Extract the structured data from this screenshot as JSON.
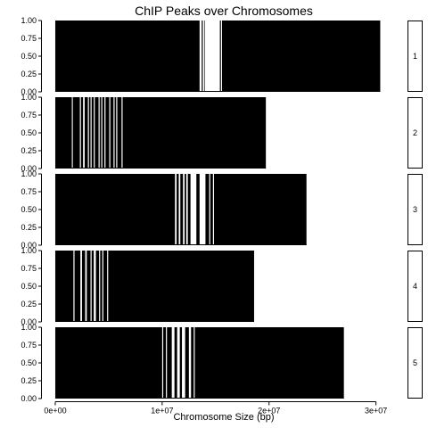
{
  "chart_data": {
    "type": "bar",
    "title": "ChIP Peaks over Chromosomes",
    "xlabel": "Chromosome Size (bp)",
    "ylabel": "",
    "xlim": [
      -1250000,
      32700000
    ],
    "ylim": [
      0,
      1
    ],
    "x_ticks": [
      0,
      10000000,
      20000000,
      30000000
    ],
    "x_tick_labels": [
      "0e+00",
      "1e+07",
      "2e+07",
      "3e+07"
    ],
    "y_ticks": [
      0,
      0.25,
      0.5,
      0.75,
      1
    ],
    "y_tick_labels": [
      "0.00",
      "0.25",
      "0.50",
      "0.75",
      "1.00"
    ],
    "peak_height": 1.0,
    "grid": false,
    "legend": "none",
    "colors": {
      "peak": "#000000",
      "background": "#ffffff",
      "strip": "#ffffff"
    },
    "panels": [
      {
        "chromosome": "1",
        "size": 30400000,
        "gaps": [
          [
            13500000,
            13700000
          ],
          [
            13800000,
            13950000
          ],
          [
            14000000,
            15400000
          ],
          [
            15500000,
            15600000
          ]
        ]
      },
      {
        "chromosome": "2",
        "size": 19700000,
        "gaps": [
          [
            1550000,
            1640000
          ],
          [
            2300000,
            2400000
          ],
          [
            2600000,
            2750000
          ],
          [
            3050000,
            3150000
          ],
          [
            3300000,
            3400000
          ],
          [
            3600000,
            3700000
          ],
          [
            4050000,
            4150000
          ],
          [
            4300000,
            4400000
          ],
          [
            4600000,
            4700000
          ],
          [
            5050000,
            5150000
          ],
          [
            5450000,
            5550000
          ],
          [
            5700000,
            5800000
          ],
          [
            6200000,
            6300000
          ]
        ]
      },
      {
        "chromosome": "3",
        "size": 23500000,
        "gaps": [
          [
            11200000,
            11350000
          ],
          [
            11550000,
            11700000
          ],
          [
            11950000,
            12100000
          ],
          [
            12250000,
            12400000
          ],
          [
            12650000,
            13200000
          ],
          [
            13500000,
            14050000
          ],
          [
            14400000,
            14500000
          ],
          [
            14750000,
            14850000
          ]
        ]
      },
      {
        "chromosome": "4",
        "size": 18600000,
        "gaps": [
          [
            1700000,
            1800000
          ],
          [
            2350000,
            2500000
          ],
          [
            2800000,
            2950000
          ],
          [
            3300000,
            3400000
          ],
          [
            3600000,
            3800000
          ],
          [
            4100000,
            4200000
          ],
          [
            4400000,
            4500000
          ],
          [
            4850000,
            4950000
          ]
        ]
      },
      {
        "chromosome": "5",
        "size": 27000000,
        "gaps": [
          [
            10000000,
            10100000
          ],
          [
            10350000,
            10450000
          ],
          [
            10900000,
            11150000
          ],
          [
            11400000,
            11650000
          ],
          [
            11850000,
            12150000
          ],
          [
            12500000,
            12700000
          ],
          [
            12950000,
            13050000
          ]
        ]
      }
    ]
  }
}
